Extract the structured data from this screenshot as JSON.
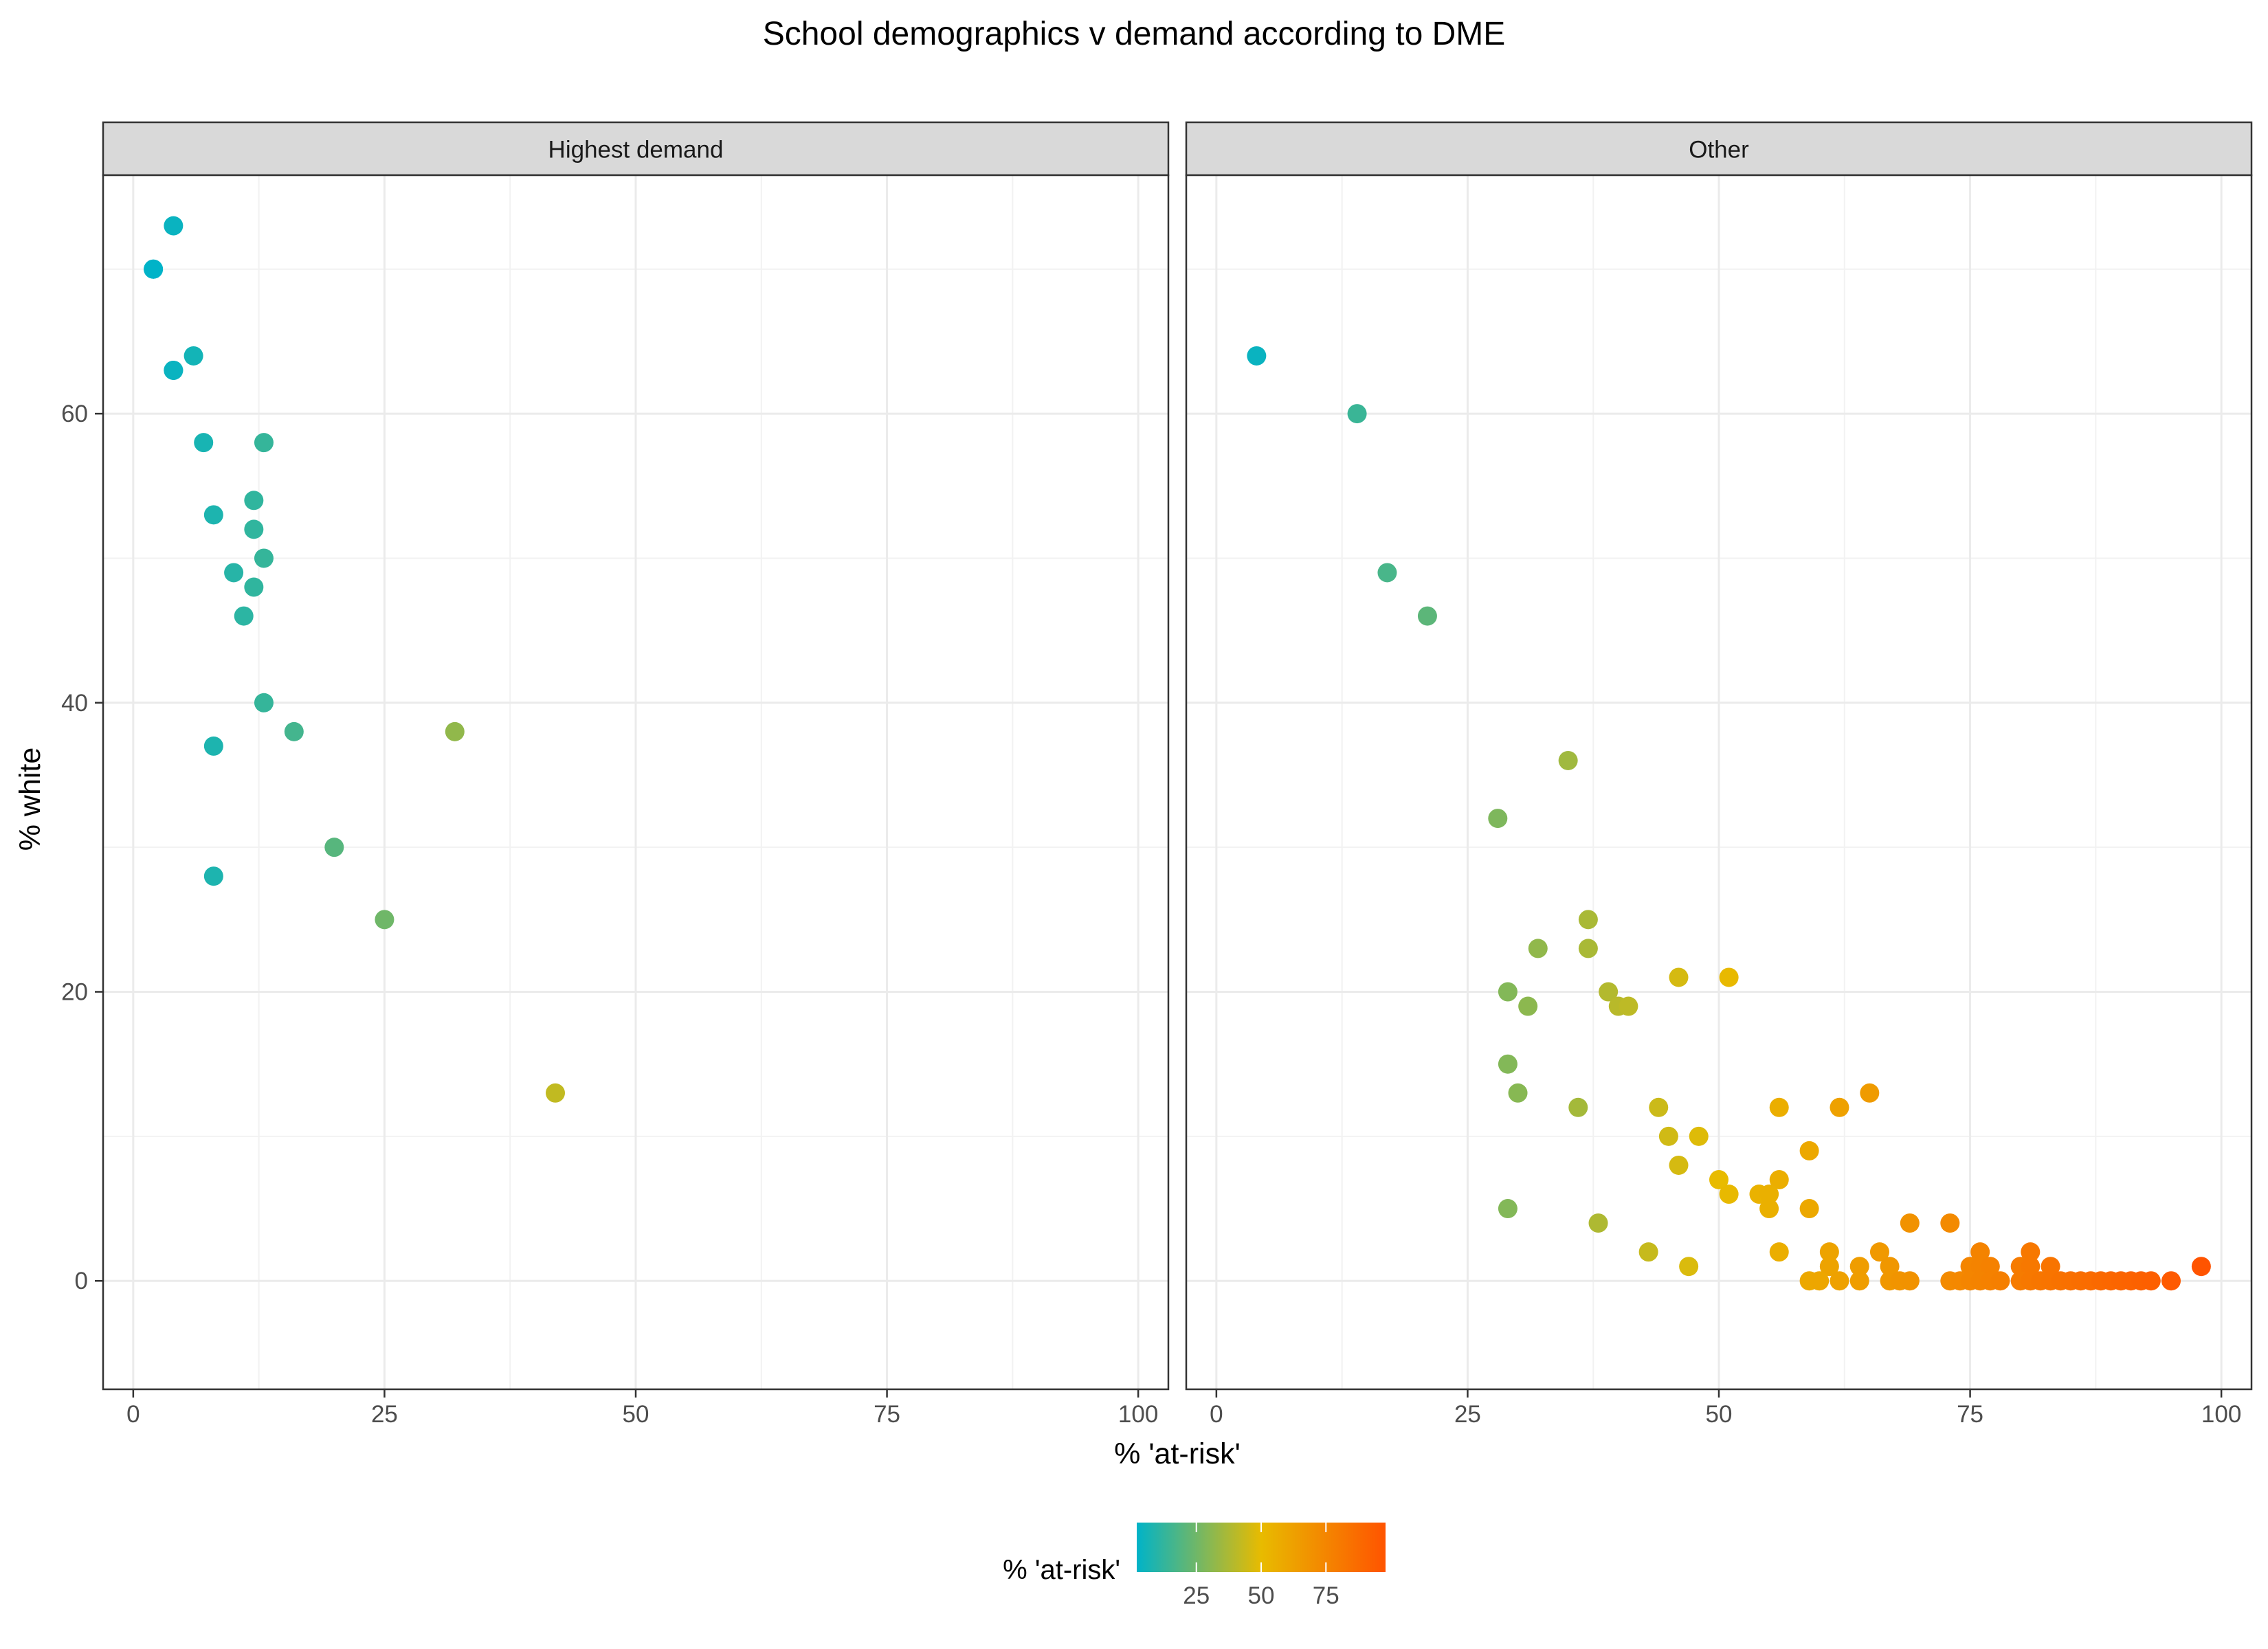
{
  "chart_data": {
    "type": "scatter",
    "title": "School demographics v demand according to DME",
    "xlabel": "% 'at-risk'",
    "ylabel": "% white",
    "xlim": [
      -3,
      103
    ],
    "ylim": [
      -7.5,
      76.5
    ],
    "x_ticks": [
      0,
      25,
      50,
      75,
      100
    ],
    "y_ticks": [
      0,
      20,
      40,
      60
    ],
    "grid": true,
    "legend": {
      "title": "% 'at-risk'",
      "position": "bottom",
      "ticks": [
        25,
        50,
        75
      ],
      "range": [
        2,
        98
      ],
      "colors": [
        "#00b3c8",
        "#e8bb00",
        "#ff5400"
      ],
      "stops": [
        0,
        50,
        100
      ]
    },
    "panels": [
      {
        "label": "Highest demand",
        "points": [
          [
            4,
            73
          ],
          [
            2,
            70
          ],
          [
            2,
            70
          ],
          [
            6,
            64
          ],
          [
            4,
            63
          ],
          [
            4,
            63
          ],
          [
            7,
            58
          ],
          [
            13,
            58
          ],
          [
            12,
            54
          ],
          [
            8,
            53
          ],
          [
            12,
            52
          ],
          [
            13,
            50
          ],
          [
            10,
            49
          ],
          [
            12,
            48
          ],
          [
            11,
            46
          ],
          [
            13,
            40
          ],
          [
            16,
            38
          ],
          [
            32,
            38
          ],
          [
            8,
            37
          ],
          [
            20,
            30
          ],
          [
            8,
            28
          ],
          [
            25,
            25
          ],
          [
            42,
            13
          ]
        ]
      },
      {
        "label": "Other",
        "points": [
          [
            4,
            64
          ],
          [
            14,
            60
          ],
          [
            17,
            49
          ],
          [
            21,
            46
          ],
          [
            35,
            36
          ],
          [
            28,
            32
          ],
          [
            37,
            25
          ],
          [
            32,
            23
          ],
          [
            37,
            23
          ],
          [
            46,
            21
          ],
          [
            51,
            21
          ],
          [
            29,
            20
          ],
          [
            39,
            20
          ],
          [
            31,
            19
          ],
          [
            40,
            19
          ],
          [
            41,
            19
          ],
          [
            29,
            15
          ],
          [
            30,
            13
          ],
          [
            65,
            13
          ],
          [
            36,
            12
          ],
          [
            44,
            12
          ],
          [
            56,
            12
          ],
          [
            62,
            12
          ],
          [
            45,
            10
          ],
          [
            48,
            10
          ],
          [
            59,
            9
          ],
          [
            46,
            8
          ],
          [
            50,
            7
          ],
          [
            56,
            7
          ],
          [
            51,
            6
          ],
          [
            54,
            6
          ],
          [
            55,
            6
          ],
          [
            55,
            5
          ],
          [
            59,
            5
          ],
          [
            29,
            5
          ],
          [
            38,
            4
          ],
          [
            69,
            4
          ],
          [
            73,
            4
          ],
          [
            43,
            2
          ],
          [
            56,
            2
          ],
          [
            61,
            2
          ],
          [
            66,
            2
          ],
          [
            76,
            2
          ],
          [
            81,
            2
          ],
          [
            47,
            1
          ],
          [
            61,
            1
          ],
          [
            64,
            1
          ],
          [
            67,
            1
          ],
          [
            75,
            1
          ],
          [
            76,
            1
          ],
          [
            77,
            1
          ],
          [
            80,
            1
          ],
          [
            81,
            1
          ],
          [
            83,
            1
          ],
          [
            98,
            1
          ],
          [
            59,
            0
          ],
          [
            60,
            0
          ],
          [
            62,
            0
          ],
          [
            64,
            0
          ],
          [
            67,
            0
          ],
          [
            68,
            0
          ],
          [
            69,
            0
          ],
          [
            73,
            0
          ],
          [
            74,
            0
          ],
          [
            75,
            0
          ],
          [
            76,
            0
          ],
          [
            77,
            0
          ],
          [
            78,
            0
          ],
          [
            80,
            0
          ],
          [
            81,
            0
          ],
          [
            82,
            0
          ],
          [
            83,
            0
          ],
          [
            84,
            0
          ],
          [
            85,
            0
          ],
          [
            86,
            0
          ],
          [
            87,
            0
          ],
          [
            88,
            0
          ],
          [
            89,
            0
          ],
          [
            90,
            0
          ],
          [
            91,
            0
          ],
          [
            92,
            0
          ],
          [
            93,
            0
          ],
          [
            95,
            0
          ]
        ]
      }
    ]
  }
}
